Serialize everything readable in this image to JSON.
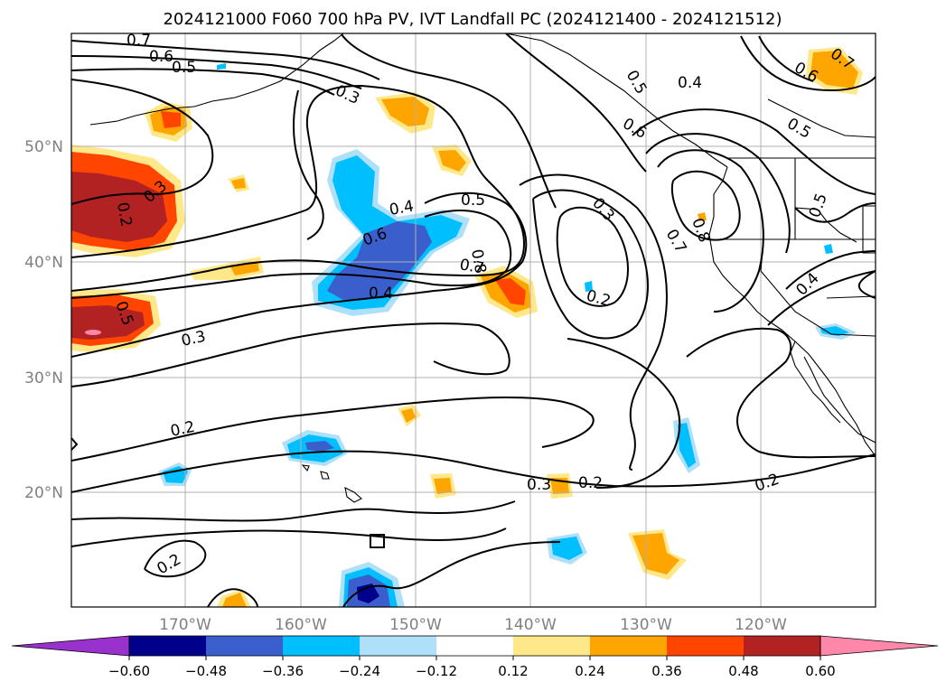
{
  "title": "2024121000 F060 700 hPa PV, IVT Landfall PC (2024121400 - 2024121512)",
  "lat_labels": [
    "50°N",
    "40°N",
    "30°N",
    "20°N"
  ],
  "lon_labels": [
    "170°W",
    "160°W",
    "150°W",
    "140°W",
    "130°W",
    "120°W"
  ],
  "colorbar": {
    "ticks": [
      "−0.60",
      "−0.48",
      "−0.36",
      "−0.24",
      "−0.12",
      "0.12",
      "0.24",
      "0.36",
      "0.48",
      "0.60"
    ],
    "colors": [
      "#9932cc",
      "#00008b",
      "#3a5fcd",
      "#00bfff",
      "#afe0fa",
      "#ffffff",
      "#ffe88a",
      "#ffa500",
      "#ff4500",
      "#b22222",
      "#ff88aa"
    ]
  },
  "fill_colors": {
    "neg_light": "#afe0fa",
    "neg_mid": "#00bfff",
    "neg_dark": "#3a5fcd",
    "neg_darkest": "#00008b",
    "pos_light": "#ffe88a",
    "pos_mid": "#ffa500",
    "pos_dark": "#ff4500",
    "pos_darker": "#b22222",
    "pos_max": "#ff88aa"
  },
  "contour_labels": [
    "0.7",
    "0.6",
    "0.5",
    "0.3",
    "0.2",
    "0.3",
    "0.4",
    "0.6",
    "0.5",
    "0.8",
    "0.7",
    "0.4",
    "0.5",
    "0.3",
    "0.2",
    "0.2",
    "0.2",
    "0.3",
    "0.3",
    "0.2",
    "0.5",
    "0.4",
    "0.6",
    "0.6",
    "0.7",
    "0.5",
    "0.8",
    "0.7",
    "0.5",
    "0.4",
    "0.2"
  ]
}
